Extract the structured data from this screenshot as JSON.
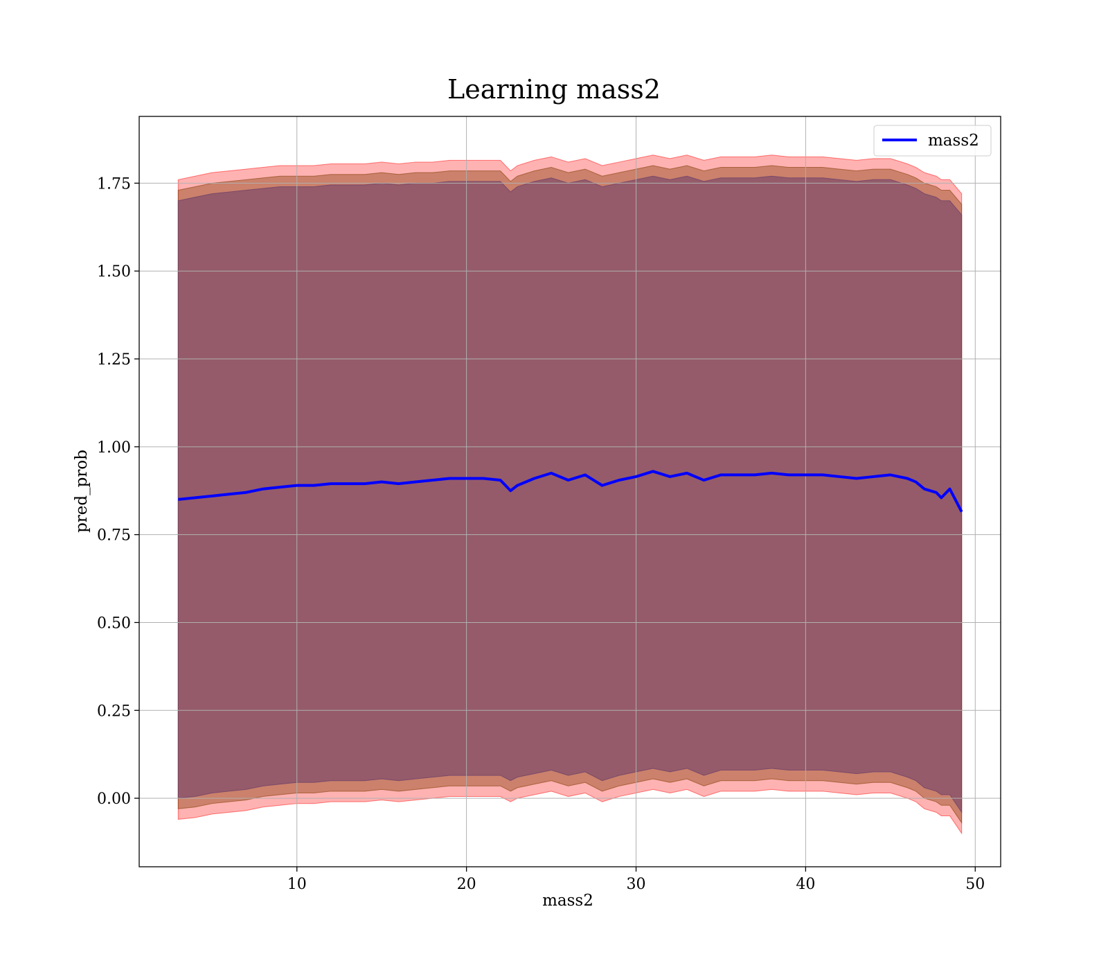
{
  "chart_data": {
    "type": "line",
    "title": "Learning mass2",
    "xlabel": "mass2",
    "ylabel": "pred_prob",
    "xlim": [
      0.7,
      51.5
    ],
    "ylim": [
      -0.195,
      1.94
    ],
    "grid": true,
    "legend_position": "top-right",
    "xticks": [
      10,
      20,
      30,
      40,
      50
    ],
    "yticks": [
      0.0,
      0.25,
      0.5,
      0.75,
      1.0,
      1.25,
      1.5,
      1.75
    ],
    "ytick_labels": [
      "0.00",
      "0.25",
      "0.50",
      "0.75",
      "1.00",
      "1.25",
      "1.50",
      "1.75"
    ],
    "series": [
      {
        "name": "mass2",
        "color": "#0000ff",
        "x": [
          3.0,
          4.0,
          5.0,
          6.0,
          7.0,
          8.0,
          9.0,
          10.0,
          11.0,
          12.0,
          13.0,
          14.0,
          15.0,
          16.0,
          17.0,
          18.0,
          19.0,
          20.0,
          21.0,
          22.0,
          22.6,
          23.0,
          24.0,
          25.0,
          26.0,
          27.0,
          28.0,
          29.0,
          30.0,
          31.0,
          32.0,
          33.0,
          34.0,
          35.0,
          36.0,
          37.0,
          38.0,
          39.0,
          40.0,
          41.0,
          42.0,
          43.0,
          44.0,
          45.0,
          46.0,
          46.5,
          47.0,
          47.7,
          48.0,
          48.5,
          49.2
        ],
        "y": [
          0.85,
          0.855,
          0.86,
          0.865,
          0.87,
          0.88,
          0.885,
          0.89,
          0.89,
          0.895,
          0.895,
          0.895,
          0.9,
          0.895,
          0.9,
          0.905,
          0.91,
          0.91,
          0.91,
          0.905,
          0.875,
          0.89,
          0.91,
          0.925,
          0.905,
          0.92,
          0.89,
          0.905,
          0.915,
          0.93,
          0.915,
          0.925,
          0.905,
          0.92,
          0.92,
          0.92,
          0.925,
          0.92,
          0.92,
          0.92,
          0.915,
          0.91,
          0.915,
          0.92,
          0.91,
          0.9,
          0.88,
          0.87,
          0.855,
          0.88,
          0.815
        ]
      }
    ],
    "bands": [
      {
        "color": "#ff0000",
        "opacity": 0.3,
        "upper": [
          1.76,
          1.77,
          1.78,
          1.785,
          1.79,
          1.795,
          1.8,
          1.8,
          1.8,
          1.805,
          1.805,
          1.805,
          1.81,
          1.805,
          1.81,
          1.81,
          1.815,
          1.815,
          1.815,
          1.815,
          1.785,
          1.8,
          1.815,
          1.825,
          1.81,
          1.82,
          1.8,
          1.81,
          1.82,
          1.83,
          1.82,
          1.83,
          1.815,
          1.825,
          1.825,
          1.825,
          1.83,
          1.825,
          1.825,
          1.825,
          1.82,
          1.815,
          1.82,
          1.82,
          1.805,
          1.795,
          1.78,
          1.77,
          1.76,
          1.76,
          1.72
        ],
        "lower": [
          -0.06,
          -0.055,
          -0.045,
          -0.04,
          -0.035,
          -0.025,
          -0.02,
          -0.015,
          -0.015,
          -0.01,
          -0.01,
          -0.01,
          -0.005,
          -0.01,
          -0.005,
          0.0,
          0.005,
          0.005,
          0.005,
          0.005,
          -0.01,
          0.0,
          0.01,
          0.02,
          0.005,
          0.015,
          -0.01,
          0.005,
          0.015,
          0.025,
          0.015,
          0.025,
          0.005,
          0.02,
          0.02,
          0.02,
          0.025,
          0.02,
          0.02,
          0.02,
          0.015,
          0.01,
          0.015,
          0.015,
          0.0,
          -0.01,
          -0.03,
          -0.04,
          -0.05,
          -0.05,
          -0.1
        ]
      },
      {
        "color": "#8b4513",
        "opacity": 0.45,
        "upper": [
          1.73,
          1.74,
          1.75,
          1.755,
          1.76,
          1.765,
          1.77,
          1.77,
          1.77,
          1.775,
          1.775,
          1.775,
          1.78,
          1.775,
          1.78,
          1.78,
          1.785,
          1.785,
          1.785,
          1.785,
          1.755,
          1.77,
          1.785,
          1.795,
          1.78,
          1.79,
          1.77,
          1.78,
          1.79,
          1.8,
          1.79,
          1.8,
          1.785,
          1.795,
          1.795,
          1.795,
          1.8,
          1.795,
          1.795,
          1.795,
          1.79,
          1.785,
          1.79,
          1.79,
          1.775,
          1.765,
          1.75,
          1.74,
          1.73,
          1.73,
          1.69
        ],
        "lower": [
          -0.03,
          -0.025,
          -0.015,
          -0.01,
          -0.005,
          0.005,
          0.01,
          0.015,
          0.015,
          0.02,
          0.02,
          0.02,
          0.025,
          0.02,
          0.025,
          0.03,
          0.035,
          0.035,
          0.035,
          0.035,
          0.02,
          0.03,
          0.04,
          0.05,
          0.035,
          0.045,
          0.02,
          0.035,
          0.045,
          0.055,
          0.045,
          0.055,
          0.035,
          0.05,
          0.05,
          0.05,
          0.055,
          0.05,
          0.05,
          0.05,
          0.045,
          0.04,
          0.045,
          0.045,
          0.03,
          0.02,
          0.0,
          -0.01,
          -0.02,
          -0.02,
          -0.07
        ]
      },
      {
        "color": "#6a3d6a",
        "opacity": 0.55,
        "upper": [
          1.7,
          1.71,
          1.72,
          1.725,
          1.73,
          1.735,
          1.74,
          1.74,
          1.74,
          1.745,
          1.745,
          1.745,
          1.75,
          1.745,
          1.75,
          1.75,
          1.755,
          1.755,
          1.755,
          1.755,
          1.725,
          1.74,
          1.755,
          1.765,
          1.75,
          1.76,
          1.74,
          1.75,
          1.76,
          1.77,
          1.76,
          1.77,
          1.755,
          1.765,
          1.765,
          1.765,
          1.77,
          1.765,
          1.765,
          1.765,
          1.76,
          1.755,
          1.76,
          1.76,
          1.745,
          1.735,
          1.72,
          1.71,
          1.7,
          1.7,
          1.66
        ],
        "lower": [
          0.0,
          0.005,
          0.015,
          0.02,
          0.025,
          0.035,
          0.04,
          0.045,
          0.045,
          0.05,
          0.05,
          0.05,
          0.055,
          0.05,
          0.055,
          0.06,
          0.065,
          0.065,
          0.065,
          0.065,
          0.05,
          0.06,
          0.07,
          0.08,
          0.065,
          0.075,
          0.05,
          0.065,
          0.075,
          0.085,
          0.075,
          0.085,
          0.065,
          0.08,
          0.08,
          0.08,
          0.085,
          0.08,
          0.08,
          0.08,
          0.075,
          0.07,
          0.075,
          0.075,
          0.06,
          0.05,
          0.03,
          0.02,
          0.01,
          0.01,
          -0.04
        ]
      }
    ]
  }
}
